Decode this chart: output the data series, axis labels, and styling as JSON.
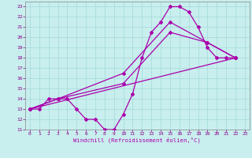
{
  "xlabel": "Windchill (Refroidissement éolien,°C)",
  "ylabel": "",
  "xlim": [
    -0.5,
    23.5
  ],
  "ylim": [
    11,
    23.5
  ],
  "xticks": [
    0,
    1,
    2,
    3,
    4,
    5,
    6,
    7,
    8,
    9,
    10,
    11,
    12,
    13,
    14,
    15,
    16,
    17,
    18,
    19,
    20,
    21,
    22,
    23
  ],
  "yticks": [
    11,
    12,
    13,
    14,
    15,
    16,
    17,
    18,
    19,
    20,
    21,
    22,
    23
  ],
  "bg_color": "#c8eeee",
  "grid_color": "#aadddd",
  "line_color": "#aa00aa",
  "lines": [
    [
      [
        0,
        13
      ],
      [
        1,
        13
      ],
      [
        2,
        14
      ],
      [
        3,
        14
      ],
      [
        4,
        14
      ],
      [
        5,
        13
      ],
      [
        6,
        12
      ],
      [
        7,
        12
      ],
      [
        8,
        11
      ],
      [
        9,
        11
      ],
      [
        10,
        12.5
      ],
      [
        11,
        14.5
      ],
      [
        12,
        18
      ],
      [
        13,
        20.5
      ],
      [
        14,
        21.5
      ],
      [
        15,
        23
      ],
      [
        16,
        23
      ],
      [
        17,
        22.5
      ],
      [
        18,
        21
      ],
      [
        19,
        19
      ],
      [
        20,
        18
      ],
      [
        21,
        18
      ],
      [
        22,
        18
      ]
    ],
    [
      [
        0,
        13
      ],
      [
        3,
        14
      ],
      [
        10,
        15.5
      ],
      [
        15,
        20.5
      ],
      [
        19,
        19.5
      ],
      [
        22,
        18
      ]
    ],
    [
      [
        0,
        13
      ],
      [
        3,
        14
      ],
      [
        10,
        16.5
      ],
      [
        15,
        21.5
      ],
      [
        19,
        19.5
      ],
      [
        22,
        18
      ]
    ],
    [
      [
        0,
        13
      ],
      [
        22,
        18
      ]
    ]
  ],
  "marker": "D",
  "marker_size": 2.0,
  "line_width": 0.9,
  "tick_fontsize": 4.5,
  "xlabel_fontsize": 5.2
}
